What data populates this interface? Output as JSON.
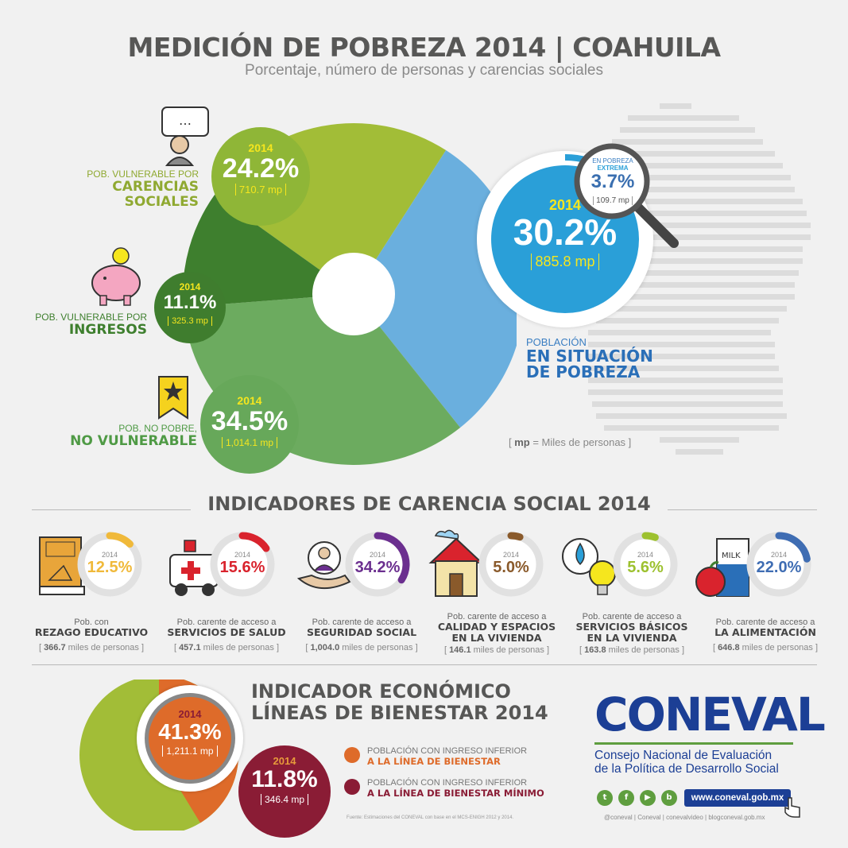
{
  "header": {
    "title": "MEDICIÓN DE POBREZA 2014 | COAHUILA",
    "subtitle": "Porcentaje, número de personas y carencias sociales"
  },
  "chart_data": [
    {
      "type": "pie",
      "title": "MEDICIÓN DE POBREZA 2014 | COAHUILA",
      "year": "2014",
      "slices": [
        {
          "name": "POB. VULNERABLE POR CARENCIAS SOCIALES",
          "value": 24.2,
          "people": "710.7 mp",
          "color": "#a2bd37"
        },
        {
          "name": "POBLACIÓN EN SITUACIÓN DE POBREZA",
          "value": 30.2,
          "people": "885.8 mp",
          "color": "#6aafde"
        },
        {
          "name": "POB. NO POBRE, NO VULNERABLE",
          "value": 34.5,
          "people": "1,014.1 mp",
          "color": "#6cab5f"
        },
        {
          "name": "POB. VULNERABLE POR INGRESOS",
          "value": 11.1,
          "people": "325.3 mp",
          "color": "#3e7f2e"
        }
      ],
      "extreme": {
        "label_top": "EN POBREZA",
        "label_bottom": "EXTREMA",
        "value": "3.7%",
        "people": "109.7 mp"
      }
    },
    {
      "type": "bar",
      "title": "INDICADORES DE CARENCIA SOCIAL 2014",
      "categories": [
        "REZAGO EDUCATIVO",
        "SERVICIOS DE SALUD",
        "SEGURIDAD SOCIAL",
        "CALIDAD Y ESPACIOS EN LA VIVIENDA",
        "SERVICIOS BÁSICOS EN LA VIVIENDA",
        "LA ALIMENTACIÓN"
      ],
      "values": [
        12.5,
        15.6,
        34.2,
        5.0,
        5.6,
        22.0
      ],
      "unit": "%"
    },
    {
      "type": "pie",
      "title": "INDICADOR ECONÓMICO LÍNEAS DE BIENESTAR 2014",
      "slices": [
        {
          "name": "POBLACIÓN CON INGRESO INFERIOR A LA LÍNEA DE BIENESTAR",
          "value": 41.3,
          "people": "1,211.1 mp",
          "color": "#de6b2a"
        },
        {
          "name": "POBLACIÓN CON INGRESO INFERIOR A LA LÍNEA DE BIENESTAR MÍNIMO",
          "value": 11.8,
          "people": "346.4 mp",
          "color": "#8a1c35"
        }
      ]
    }
  ],
  "pie_labels": {
    "carencias": {
      "small": "POB. VULNERABLE POR",
      "l1": "CARENCIAS",
      "l2": "SOCIALES",
      "year": "2014",
      "pct": "24.2%",
      "mp": "710.7 mp"
    },
    "ingresos": {
      "small": "POB. VULNERABLE POR",
      "l1": "INGRESOS",
      "year": "2014",
      "pct": "11.1%",
      "mp": "325.3 mp"
    },
    "nopobre": {
      "small": "POB. NO POBRE,",
      "l1": "NO VULNERABLE",
      "year": "2014",
      "pct": "34.5%",
      "mp": "1,014.1 mp"
    },
    "pobreza": {
      "small": "POBLACIÓN",
      "l1": "EN SITUACIÓN",
      "l2": "DE POBREZA",
      "year": "2014",
      "pct": "30.2%",
      "mp": "885.8 mp"
    },
    "extrema": {
      "top": "EN POBREZA",
      "bottom": "EXTREMA",
      "pct": "3.7%",
      "mp": "109.7 mp"
    },
    "mp_note_bold": "mp",
    "mp_note_rest": " = Miles de personas"
  },
  "indicators": {
    "title": "INDICADORES DE CARENCIA SOCIAL 2014",
    "items": [
      {
        "year": "2014",
        "pct": "12.5%",
        "value": 12.5,
        "color": "#f0b93a",
        "l1": "Pob. con",
        "l2a": "REZAGO EDUCATIVO",
        "l2b": "",
        "mp": "366.7",
        "mp_rest": " miles de personas"
      },
      {
        "year": "2014",
        "pct": "15.6%",
        "value": 15.6,
        "color": "#d9232d",
        "l1": "Pob. carente de acceso a",
        "l2a": "SERVICIOS DE SALUD",
        "l2b": "",
        "mp": "457.1",
        "mp_rest": " miles de personas"
      },
      {
        "year": "2014",
        "pct": "34.2%",
        "value": 34.2,
        "color": "#6b2f8f",
        "l1": "Pob. carente de acceso a",
        "l2a": "SEGURIDAD SOCIAL",
        "l2b": "",
        "mp": "1,004.0",
        "mp_rest": " miles de personas"
      },
      {
        "year": "2014",
        "pct": "5.0%",
        "value": 5.0,
        "color": "#8a5a2b",
        "l1": "Pob. carente de acceso a",
        "l2a": "CALIDAD Y ESPACIOS",
        "l2b": "EN LA VIVIENDA",
        "mp": "146.1",
        "mp_rest": " miles de personas"
      },
      {
        "year": "2014",
        "pct": "5.6%",
        "value": 5.6,
        "color": "#9dc12f",
        "l1": "Pob. carente de acceso a",
        "l2a": "SERVICIOS BÁSICOS",
        "l2b": "EN LA VIVIENDA",
        "mp": "163.8",
        "mp_rest": " miles de personas"
      },
      {
        "year": "2014",
        "pct": "22.0%",
        "value": 22.0,
        "color": "#3f6db3",
        "l1": "Pob. carente de acceso a",
        "l2a": "LA ALIMENTACIÓN",
        "l2b": "",
        "mp": "646.8",
        "mp_rest": " miles de personas"
      }
    ]
  },
  "economic": {
    "title1": "INDICADOR ECONÓMICO",
    "title2": "LÍNEAS DE BIENESTAR 2014",
    "bienestar": {
      "year": "2014",
      "pct": "41.3%",
      "mp": "1,211.1 mp"
    },
    "minimo": {
      "year": "2014",
      "pct": "11.8%",
      "mp": "346.4 mp"
    },
    "legend1_top": "POBLACIÓN CON INGRESO INFERIOR",
    "legend1_bottom": "A LA LÍNEA DE BIENESTAR",
    "legend2_top": "POBLACIÓN CON INGRESO INFERIOR",
    "legend2_bottom": "A LA LÍNEA DE BIENESTAR MÍNIMO",
    "source": "Fuente: Estimaciones del CONEVAL con base en el MCS-ENIGH 2012 y 2014."
  },
  "brand": {
    "logo": "CONEVAL",
    "line1": "Consejo Nacional de Evaluación",
    "line2": "de la Política de Desarrollo Social",
    "url": "www.coneval.gob.mx",
    "handles": "@coneval  |  Coneval  |  conevalvideo  |  blogconeval.gob.mx",
    "colors": {
      "blue": "#1c3f95",
      "green": "#5f9e3f"
    }
  }
}
